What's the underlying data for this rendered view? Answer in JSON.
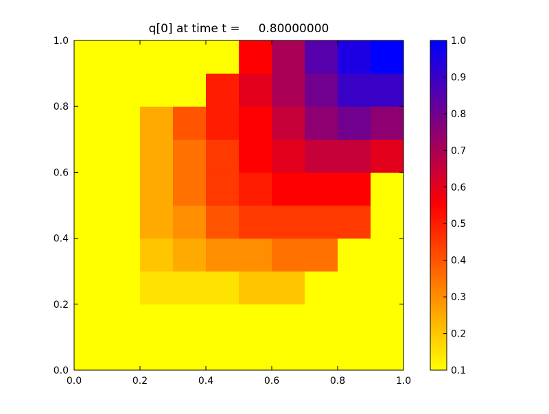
{
  "chart_data": {
    "type": "heatmap",
    "title": "q[0] at time t =     0.80000000",
    "x": [
      0.05,
      0.15,
      0.25,
      0.35,
      0.45,
      0.55,
      0.65,
      0.75,
      0.85,
      0.95
    ],
    "y": [
      0.05,
      0.15,
      0.25,
      0.35,
      0.45,
      0.55,
      0.65,
      0.75,
      0.85,
      0.95
    ],
    "z": [
      [
        0.1,
        0.1,
        0.1,
        0.1,
        0.1,
        0.1,
        0.1,
        0.1,
        0.1,
        0.1
      ],
      [
        0.1,
        0.1,
        0.1,
        0.1,
        0.1,
        0.1,
        0.1,
        0.1,
        0.1,
        0.1
      ],
      [
        0.1,
        0.1,
        0.15,
        0.15,
        0.15,
        0.2,
        0.2,
        0.1,
        0.1,
        0.1
      ],
      [
        0.1,
        0.1,
        0.2,
        0.25,
        0.3,
        0.3,
        0.35,
        0.35,
        0.1,
        0.1
      ],
      [
        0.1,
        0.1,
        0.25,
        0.3,
        0.4,
        0.45,
        0.45,
        0.45,
        0.45,
        0.1
      ],
      [
        0.1,
        0.1,
        0.25,
        0.35,
        0.45,
        0.5,
        0.55,
        0.55,
        0.55,
        0.1
      ],
      [
        0.1,
        0.1,
        0.25,
        0.35,
        0.45,
        0.55,
        0.6,
        0.65,
        0.65,
        0.6
      ],
      [
        0.1,
        0.1,
        0.25,
        0.4,
        0.5,
        0.55,
        0.65,
        0.75,
        0.8,
        0.75
      ],
      [
        0.1,
        0.1,
        0.1,
        0.1,
        0.5,
        0.6,
        0.7,
        0.8,
        0.9,
        0.9
      ],
      [
        0.1,
        0.1,
        0.1,
        0.1,
        0.1,
        0.55,
        0.7,
        0.85,
        0.95,
        1.0
      ]
    ],
    "colormap": [
      "#ffff00",
      "#ff0000",
      "#0000ff"
    ],
    "xlim": [
      0,
      1
    ],
    "ylim": [
      0,
      1
    ],
    "clim": [
      0.1,
      1.0
    ],
    "xticks": [
      {
        "value": 0,
        "label": "0.0"
      },
      0.2,
      0.4,
      0.6,
      0.8,
      {
        "value": 1,
        "label": "1.0"
      }
    ],
    "yticks": [
      {
        "value": 0,
        "label": "0.0"
      },
      0.2,
      0.4,
      0.6,
      0.8,
      {
        "value": 1,
        "label": "1.0"
      }
    ],
    "cticks": [
      0.1,
      0.2,
      0.3,
      0.4,
      0.5,
      0.6,
      0.7,
      0.8,
      0.9,
      {
        "value": 1,
        "label": "1.0"
      }
    ]
  }
}
